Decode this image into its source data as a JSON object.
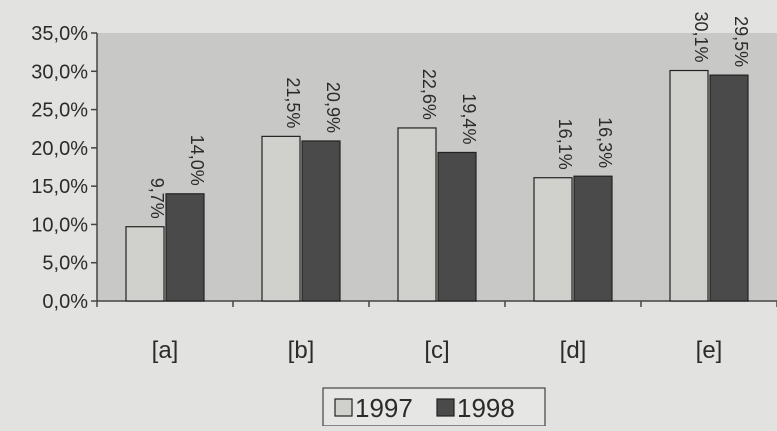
{
  "chart_data": {
    "type": "bar",
    "categories": [
      "[a]",
      "[b]",
      "[c]",
      "[d]",
      "[e]"
    ],
    "series": [
      {
        "name": "1997",
        "values": [
          9.7,
          21.5,
          22.6,
          16.1,
          30.1
        ],
        "labels": [
          "9,7%",
          "21,5%",
          "22,6%",
          "16,1%",
          "30,1%"
        ],
        "color": "#d0d0cc"
      },
      {
        "name": "1998",
        "values": [
          14.0,
          20.9,
          19.4,
          16.3,
          29.5
        ],
        "labels": [
          "14,0%",
          "20,9%",
          "19,4%",
          "16,3%",
          "29,5%"
        ],
        "color": "#4a4a4a"
      }
    ],
    "ylim": [
      0,
      35
    ],
    "yticks": [
      0,
      5,
      10,
      15,
      20,
      25,
      30,
      35
    ],
    "ytick_labels": [
      "0,0%",
      "5,0%",
      "10,0%",
      "15,0%",
      "20,0%",
      "25,0%",
      "30,0%",
      "35,0%"
    ],
    "grid": false,
    "legend": "bottom",
    "plot_background": "#c8c8c6",
    "page_background": "#e2e2e0",
    "title": "",
    "xlabel": "",
    "ylabel": ""
  }
}
